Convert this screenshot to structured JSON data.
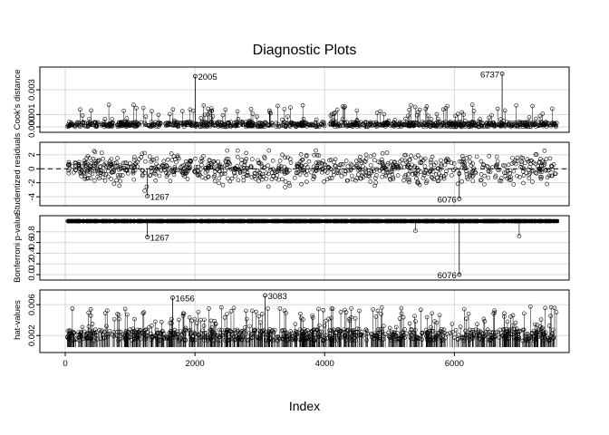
{
  "chart_data": {
    "type": "scatter",
    "title": "Diagnostic Plots",
    "xlabel": "Index",
    "xlim": [
      0,
      7700
    ],
    "x_ticks": [
      "0",
      "2000",
      "4000",
      "6000"
    ],
    "n_points": 7613,
    "grid": true,
    "panels": [
      {
        "ylabel": "Cook's distance",
        "ylim": [
          0,
          0.0044
        ],
        "y_ticks": [
          "0.000",
          "0.001",
          "0.003"
        ],
        "style": "spikes",
        "labelled_points": [
          {
            "label": "2005",
            "x": 2005,
            "y": 0.0041
          },
          {
            "label": "6737",
            "x": 6737,
            "y": 0.0043
          }
        ]
      },
      {
        "ylabel": "Studentized residuals",
        "ylim": [
          -4.5,
          3
        ],
        "y_ticks": [
          "-4",
          "-2",
          "0",
          "2"
        ],
        "style": "points",
        "reference_line": 0,
        "labelled_points": [
          {
            "label": "1267",
            "x": 1267,
            "y": -3.9
          },
          {
            "label": "6076",
            "x": 6076,
            "y": -4.3
          }
        ]
      },
      {
        "ylabel": "Bonferroni p-value",
        "ylim": [
          0,
          1
        ],
        "y_ticks": [
          "0.0",
          "0.2",
          "0.4",
          "0.6",
          "0.8"
        ],
        "style": "spikes-from-top",
        "labelled_points": [
          {
            "label": "1267",
            "x": 1267,
            "y": 0.7
          },
          {
            "label": "6076",
            "x": 6076,
            "y": 0.0
          }
        ]
      },
      {
        "ylabel": "hat-values",
        "ylim": [
          0.0005,
          0.0072
        ],
        "y_ticks": [
          "0.002",
          "0.006"
        ],
        "style": "spikes",
        "labelled_points": [
          {
            "label": "1656",
            "x": 1656,
            "y": 0.0069
          },
          {
            "label": "3083",
            "x": 3083,
            "y": 0.0072
          }
        ]
      }
    ]
  }
}
